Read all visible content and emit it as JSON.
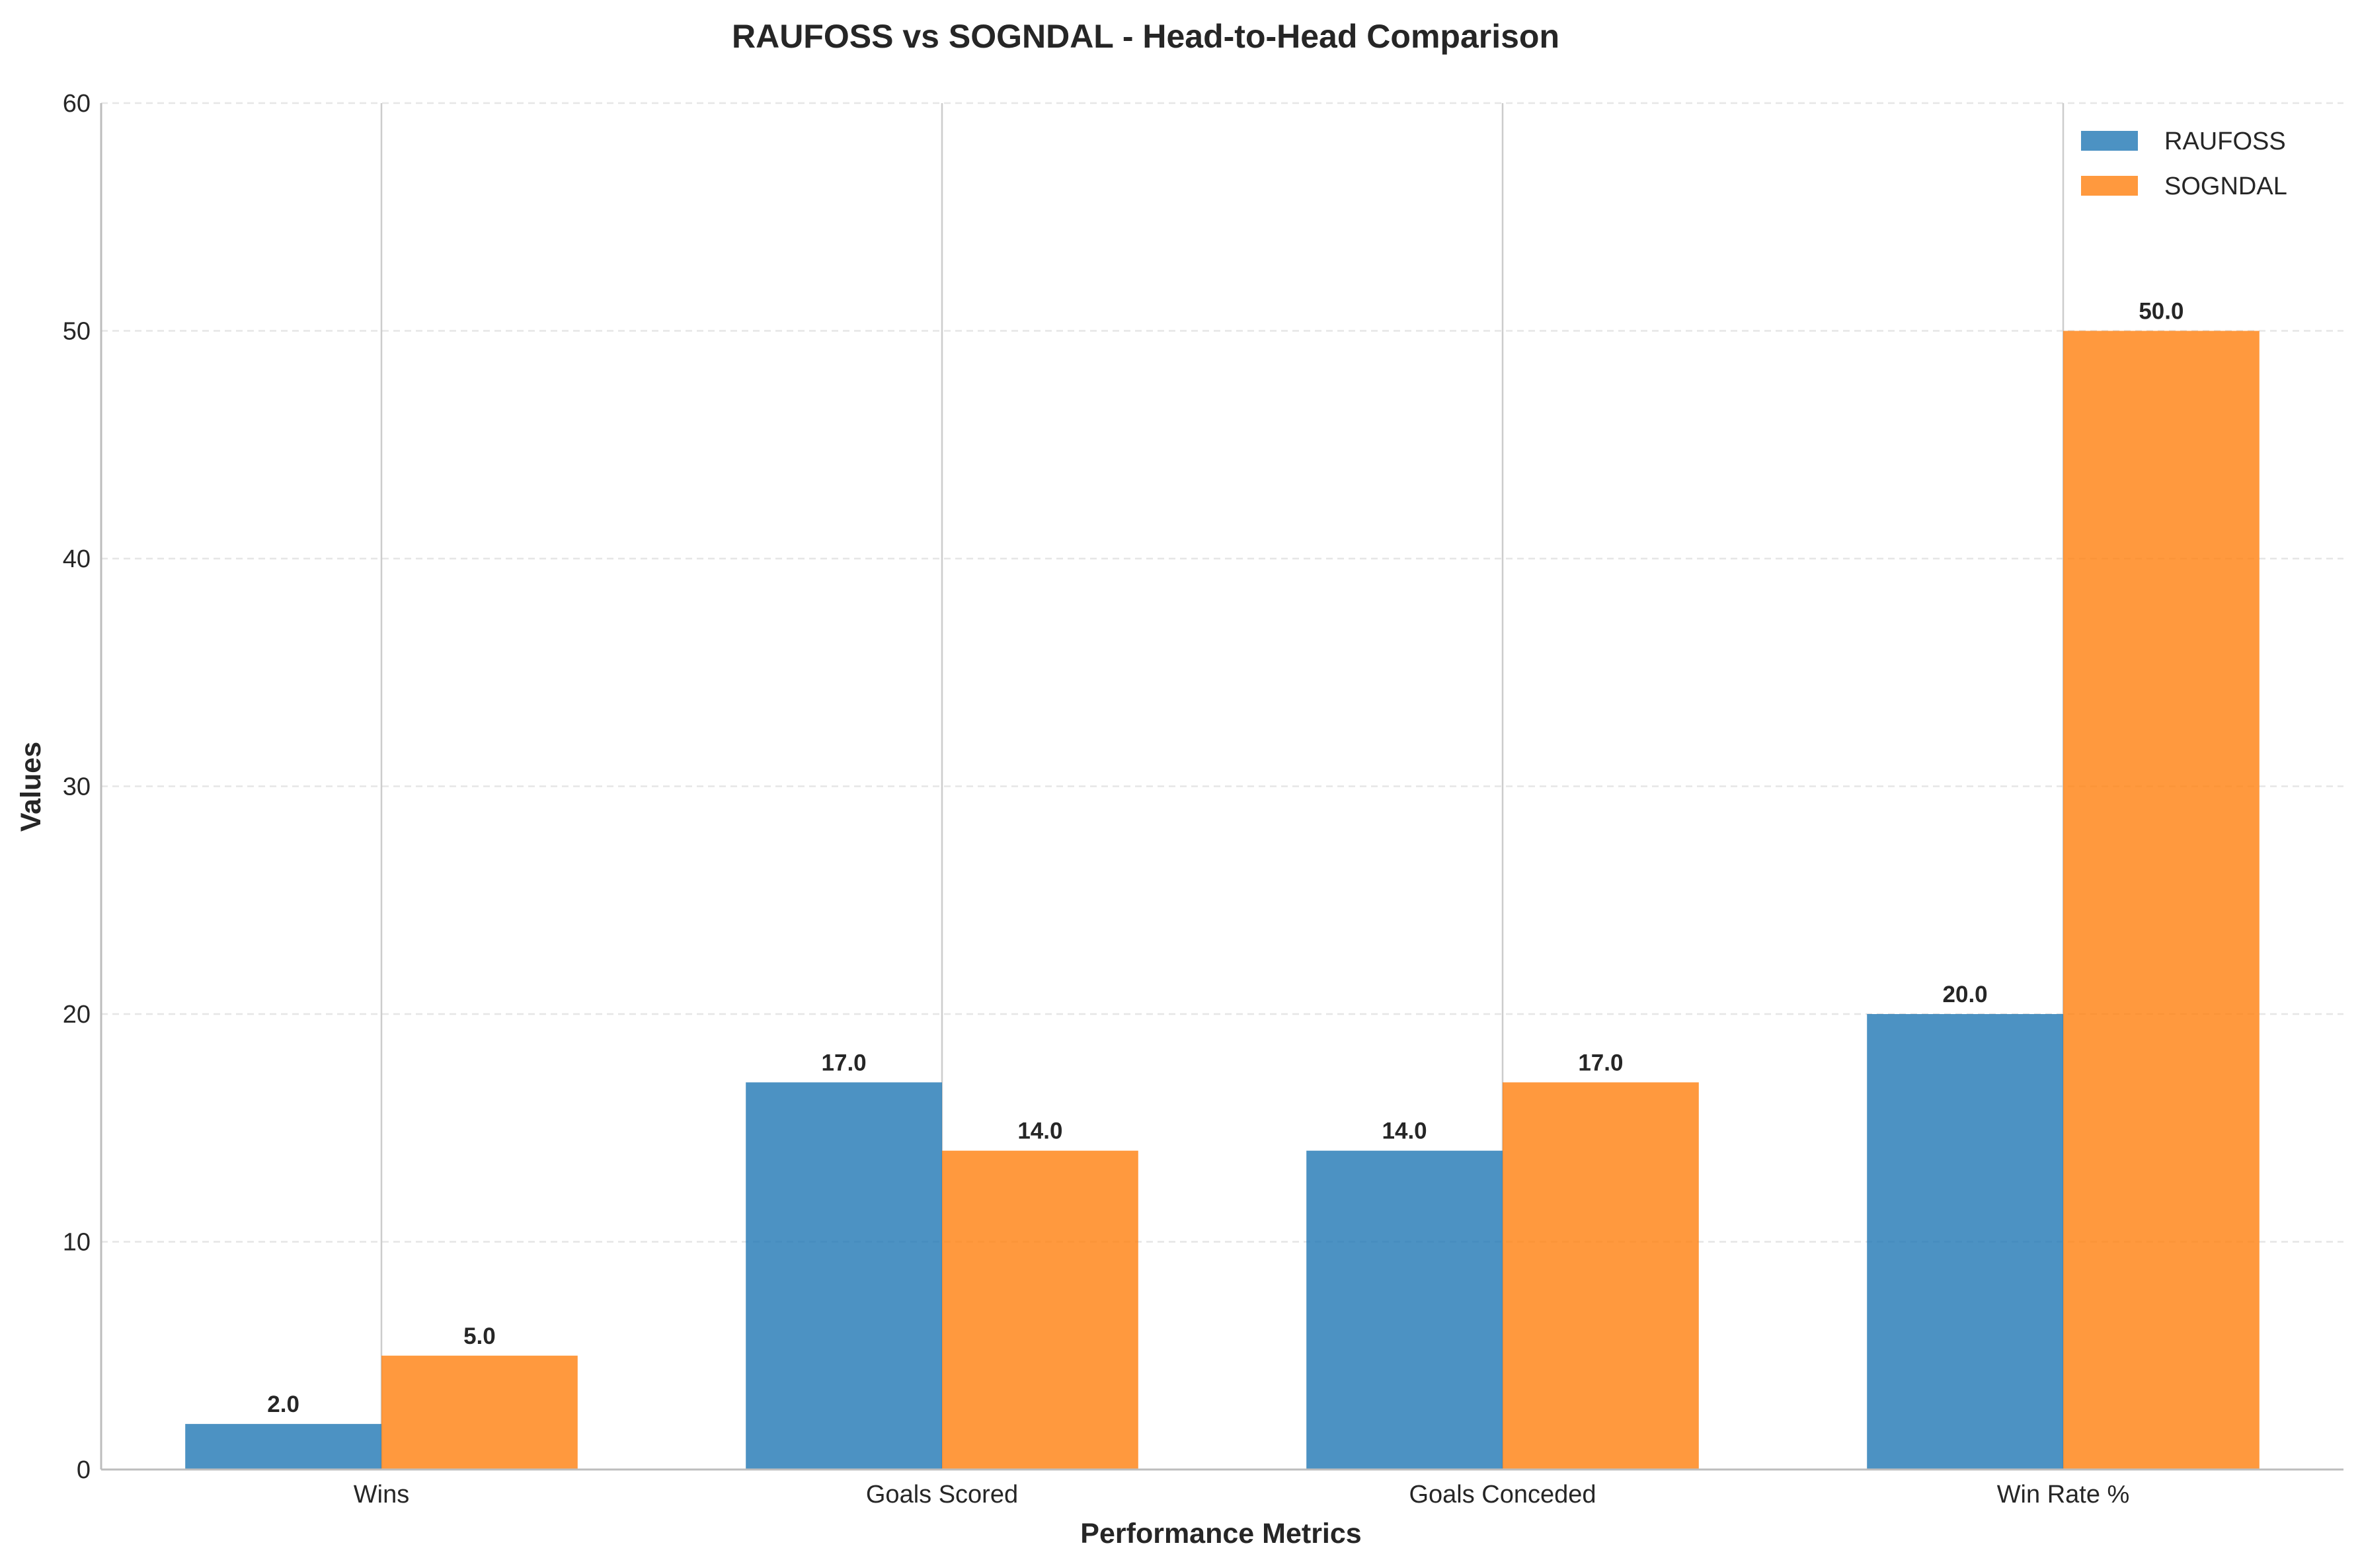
{
  "chart_data": {
    "type": "bar",
    "title": "RAUFOSS vs SOGNDAL - Head-to-Head Comparison",
    "xlabel": "Performance Metrics",
    "ylabel": "Values",
    "categories": [
      "Wins",
      "Goals Scored",
      "Goals Conceded",
      "Win Rate %"
    ],
    "series": [
      {
        "name": "RAUFOSS",
        "color": "#1f77b4",
        "values": [
          2.0,
          17.0,
          14.0,
          20.0
        ],
        "labels": [
          "2.0",
          "17.0",
          "14.0",
          "20.0"
        ]
      },
      {
        "name": "SOGNDAL",
        "color": "#ff7f0e",
        "values": [
          5.0,
          14.0,
          17.0,
          50.0
        ],
        "labels": [
          "5.0",
          "14.0",
          "17.0",
          "50.0"
        ]
      }
    ],
    "ylim": [
      0,
      60
    ],
    "yticks": [
      0,
      10,
      20,
      30,
      40,
      50,
      60
    ],
    "grid": "y dashed",
    "legend": "top-right"
  }
}
